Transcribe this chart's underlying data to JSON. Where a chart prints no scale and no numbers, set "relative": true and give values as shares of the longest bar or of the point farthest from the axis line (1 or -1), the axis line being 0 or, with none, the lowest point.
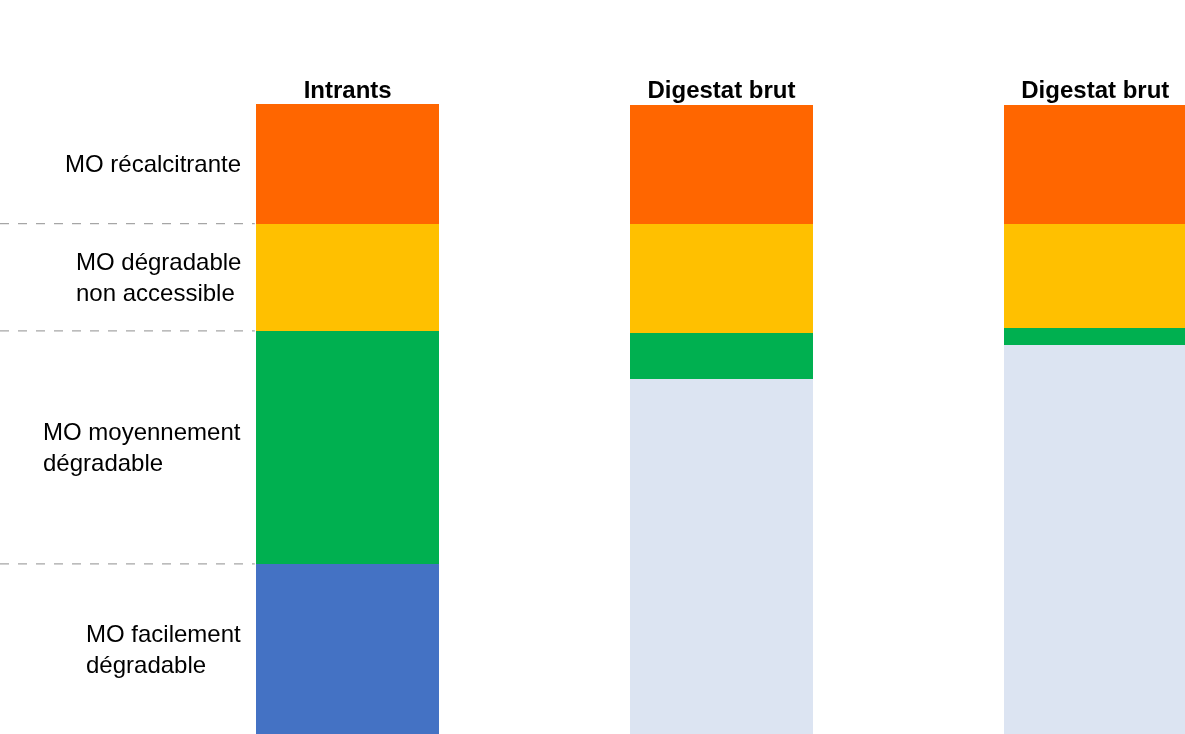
{
  "chart_data": {
    "type": "bar",
    "stacked": true,
    "relative": true,
    "legend": false,
    "categories": [
      "Intrants",
      "Digestat brut",
      "Digestat brut"
    ],
    "series": [
      {
        "color": "#dce4f2",
        "values": [
          null,
          0.563,
          0.617
        ]
      },
      {
        "name": "MO facilement dégradable",
        "color": "#4472c4",
        "values": [
          0.27,
          null,
          null
        ]
      },
      {
        "name": "MO moyennement dégradable",
        "color": "#00b050",
        "values": [
          0.37,
          0.073,
          0.027
        ]
      },
      {
        "name": "MO dégradable non accessible",
        "color": "#ffc000",
        "values": [
          0.17,
          0.173,
          0.165
        ]
      },
      {
        "name": "MO récalcitrante",
        "color": "#ff6600",
        "values": [
          0.19,
          0.19,
          0.19
        ]
      }
    ],
    "ref_lines": [
      {
        "axis": "y",
        "value": 0.27,
        "line_style": "dashed",
        "color": "#a6a6a6"
      },
      {
        "axis": "y",
        "value": 0.64,
        "line_style": "dashed",
        "color": "#a6a6a6"
      },
      {
        "axis": "y",
        "value": 0.81,
        "line_style": "dashed",
        "color": "#a6a6a6"
      }
    ]
  }
}
